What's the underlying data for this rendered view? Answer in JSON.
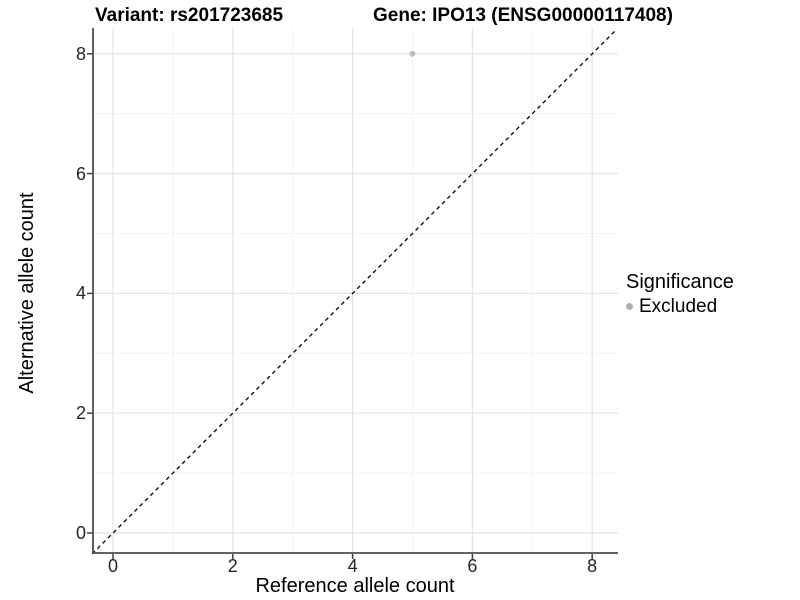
{
  "titles": {
    "variant": "Variant: rs201723685",
    "gene": "Gene: IPO13 (ENSG00000117408)"
  },
  "chart_data": {
    "type": "scatter",
    "title_left": "Variant: rs201723685",
    "title_right": "Gene: IPO13 (ENSG00000117408)",
    "xlabel": "Reference allele count",
    "ylabel": "Alternative allele count",
    "x_ticks": [
      0,
      2,
      4,
      6,
      8
    ],
    "y_ticks": [
      0,
      2,
      4,
      6,
      8
    ],
    "x_minor_ticks": [
      1,
      3,
      5,
      7
    ],
    "y_minor_ticks": [
      1,
      3,
      5,
      7
    ],
    "xlim": [
      -0.35,
      8.4
    ],
    "ylim": [
      -0.35,
      8.4
    ],
    "grid": "major and minor gridlines on white panel",
    "identity_line": {
      "style": "dashed",
      "color": "#000000",
      "from": [
        -0.35,
        -0.35
      ],
      "to": [
        8.4,
        8.4
      ]
    },
    "series": [
      {
        "name": "Excluded",
        "color": "#bdbdbd",
        "points": [
          [
            5,
            8
          ]
        ]
      }
    ],
    "legend": {
      "title": "Significance",
      "position": "right",
      "items": [
        {
          "label": "Excluded",
          "color": "#b0b0b0"
        }
      ]
    }
  },
  "colors": {
    "grid_major": "#e4e4e4",
    "grid_minor": "#efefef",
    "axis_line": "#4d4d4d",
    "tick_mark": "#404040",
    "background": "#ffffff"
  }
}
